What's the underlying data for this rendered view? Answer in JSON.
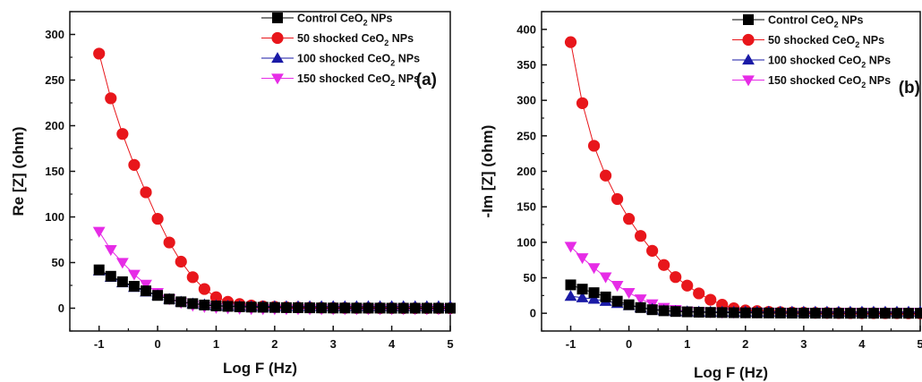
{
  "chart_data": [
    {
      "type": "scatter",
      "panel_label": "(a)",
      "xlabel": "Log F (Hz)",
      "ylabel": "Re [Z] (ohm)",
      "xlim": [
        -1.5,
        5
      ],
      "ylim": [
        -25,
        325
      ],
      "xticks": [
        -1,
        0,
        1,
        2,
        3,
        4,
        5
      ],
      "yticks": [
        0,
        50,
        100,
        150,
        200,
        250,
        300
      ],
      "legend_position": "top-right",
      "series": [
        {
          "name": "Control CeO₂ NPs",
          "marker": "square",
          "color": "#000000",
          "x": [
            -1.0,
            -0.8,
            -0.6,
            -0.4,
            -0.2,
            0.0,
            0.2,
            0.4,
            0.6,
            0.8,
            1.0,
            1.2,
            1.4,
            1.6,
            1.8,
            2.0,
            2.2,
            2.4,
            2.6,
            2.8,
            3.0,
            3.2,
            3.4,
            3.6,
            3.8,
            4.0,
            4.2,
            4.4,
            4.6,
            4.8,
            5.0
          ],
          "y": [
            42,
            35,
            29,
            24,
            19,
            14,
            10,
            7,
            5,
            3.5,
            2.5,
            2,
            1.5,
            1.2,
            1,
            0.8,
            0.6,
            0.5,
            0.4,
            0.3,
            0.2,
            0.2,
            0.1,
            0.1,
            0.1,
            0,
            0,
            0,
            0,
            0,
            0
          ]
        },
        {
          "name": "50 shocked CeO₂ NPs",
          "marker": "circle",
          "color": "#e8161b",
          "x": [
            -1.0,
            -0.8,
            -0.6,
            -0.4,
            -0.2,
            0.0,
            0.2,
            0.4,
            0.6,
            0.8,
            1.0,
            1.2,
            1.4,
            1.6,
            1.8,
            2.0,
            2.2,
            2.4,
            2.6,
            2.8,
            3.0,
            3.2,
            3.4,
            3.6,
            3.8,
            4.0,
            4.2,
            4.4,
            4.6,
            4.8,
            5.0
          ],
          "y": [
            279,
            230,
            191,
            157,
            127,
            98,
            72,
            51,
            34,
            21,
            12,
            7,
            4.5,
            3,
            2,
            1.5,
            1,
            0.8,
            0.6,
            0.5,
            0.4,
            0.3,
            0.2,
            0.2,
            0.1,
            0.1,
            0,
            0,
            0,
            0,
            0
          ]
        },
        {
          "name": "100 shocked CeO₂ NPs",
          "marker": "triangle-up",
          "color": "#1a1aa6",
          "x": [
            -1.0,
            -0.8,
            -0.6,
            -0.4,
            -0.2,
            0.0,
            0.2,
            0.4,
            0.6,
            0.8,
            1.0,
            1.2,
            1.4,
            1.6,
            1.8,
            2.0,
            2.2,
            2.4,
            2.6,
            2.8,
            3.0,
            3.2,
            3.4,
            3.6,
            3.8,
            4.0,
            4.2,
            4.4,
            4.6,
            4.8,
            5.0
          ],
          "y": [
            41,
            34,
            28,
            23,
            18,
            14,
            10,
            7,
            5,
            4,
            3,
            2.5,
            2.2,
            2,
            2,
            2,
            2,
            2,
            2,
            2,
            2,
            2,
            2,
            2,
            2,
            2,
            2,
            2,
            2,
            2,
            2
          ]
        },
        {
          "name": "150 shocked CeO₂ NPs",
          "marker": "triangle-down",
          "color": "#e62ce6",
          "x": [
            -1.0,
            -0.8,
            -0.6,
            -0.4,
            -0.2,
            0.0,
            0.2,
            0.4,
            0.6,
            0.8,
            1.0,
            1.2,
            1.4,
            1.6,
            1.8,
            2.0,
            2.2,
            2.4,
            2.6,
            2.8,
            3.0,
            3.2,
            3.4,
            3.6,
            3.8,
            4.0,
            4.2,
            4.4,
            4.6,
            4.8,
            5.0
          ],
          "y": [
            84,
            64,
            50,
            37,
            26,
            17,
            10,
            6,
            3,
            1.5,
            0.5,
            0,
            -0.5,
            -0.8,
            -1,
            -1,
            -1,
            -1,
            -1,
            -1,
            -1,
            -1,
            -1,
            -1,
            -1,
            -1,
            -1,
            -1,
            -1,
            -1,
            -1
          ]
        }
      ]
    },
    {
      "type": "scatter",
      "panel_label": "(b)",
      "xlabel": "Log F (Hz)",
      "ylabel": "-Im [Z] (ohm)",
      "xlim": [
        -1.5,
        5
      ],
      "ylim": [
        -25,
        425
      ],
      "xticks": [
        -1,
        0,
        1,
        2,
        3,
        4,
        5
      ],
      "yticks": [
        0,
        50,
        100,
        150,
        200,
        250,
        300,
        350,
        400
      ],
      "legend_position": "top-right",
      "series": [
        {
          "name": "Control CeO₂ NPs",
          "marker": "square",
          "color": "#000000",
          "x": [
            -1.0,
            -0.8,
            -0.6,
            -0.4,
            -0.2,
            0.0,
            0.2,
            0.4,
            0.6,
            0.8,
            1.0,
            1.2,
            1.4,
            1.6,
            1.8,
            2.0,
            2.2,
            2.4,
            2.6,
            2.8,
            3.0,
            3.2,
            3.4,
            3.6,
            3.8,
            4.0,
            4.2,
            4.4,
            4.6,
            4.8,
            5.0
          ],
          "y": [
            40,
            34,
            29,
            23,
            17,
            12,
            8,
            5,
            3.5,
            2.5,
            2,
            1.5,
            1.2,
            1,
            0.8,
            0.6,
            0.5,
            0.4,
            0.3,
            0.2,
            0.2,
            0.1,
            0.1,
            0,
            0,
            0,
            0,
            0,
            0,
            0,
            0
          ]
        },
        {
          "name": "50 shocked CeO₂ NPs",
          "marker": "circle",
          "color": "#e8161b",
          "x": [
            -1.0,
            -0.8,
            -0.6,
            -0.4,
            -0.2,
            0.0,
            0.2,
            0.4,
            0.6,
            0.8,
            1.0,
            1.2,
            1.4,
            1.6,
            1.8,
            2.0,
            2.2,
            2.4,
            2.6,
            2.8,
            3.0,
            3.2,
            3.4,
            3.6,
            3.8,
            4.0,
            4.2,
            4.4,
            4.6,
            4.8,
            5.0
          ],
          "y": [
            382,
            296,
            236,
            194,
            161,
            133,
            109,
            88,
            68,
            51,
            39,
            28,
            19,
            12,
            7,
            4,
            3,
            2,
            1.5,
            1,
            0.8,
            0.6,
            0.5,
            0.4,
            0.3,
            0.2,
            0.2,
            0.1,
            0.1,
            0,
            0
          ]
        },
        {
          "name": "100 shocked CeO₂ NPs",
          "marker": "triangle-up",
          "color": "#1a1aa6",
          "x": [
            -1.0,
            -0.8,
            -0.6,
            -0.4,
            -0.2,
            0.0,
            0.2,
            0.4,
            0.6,
            0.8,
            1.0,
            1.2,
            1.4,
            1.6,
            1.8,
            2.0,
            2.2,
            2.4,
            2.6,
            2.8,
            3.0,
            3.2,
            3.4,
            3.6,
            3.8,
            4.0,
            4.2,
            4.4,
            4.6,
            4.8,
            5.0
          ],
          "y": [
            24,
            22,
            20,
            17,
            14,
            11,
            8,
            6,
            4,
            3,
            2.5,
            2,
            2,
            2,
            2,
            2,
            2,
            2,
            2,
            2,
            2,
            2,
            2,
            2,
            2,
            2,
            2,
            2,
            2,
            2,
            2
          ]
        },
        {
          "name": "150 shocked CeO₂ NPs",
          "marker": "triangle-down",
          "color": "#e62ce6",
          "x": [
            -1.0,
            -0.8,
            -0.6,
            -0.4,
            -0.2,
            0.0,
            0.2,
            0.4,
            0.6,
            0.8,
            1.0,
            1.2,
            1.4,
            1.6,
            1.8,
            2.0,
            2.2,
            2.4,
            2.6,
            2.8,
            3.0,
            3.2,
            3.4,
            3.6,
            3.8,
            4.0,
            4.2,
            4.4,
            4.6,
            4.8,
            5.0
          ],
          "y": [
            94,
            78,
            64,
            51,
            39,
            29,
            20,
            13,
            8,
            5,
            3,
            2,
            1.5,
            1,
            1,
            1,
            1,
            1,
            1,
            1,
            1,
            1,
            1,
            1,
            1,
            1,
            1,
            1,
            1,
            1,
            1
          ]
        }
      ]
    }
  ]
}
